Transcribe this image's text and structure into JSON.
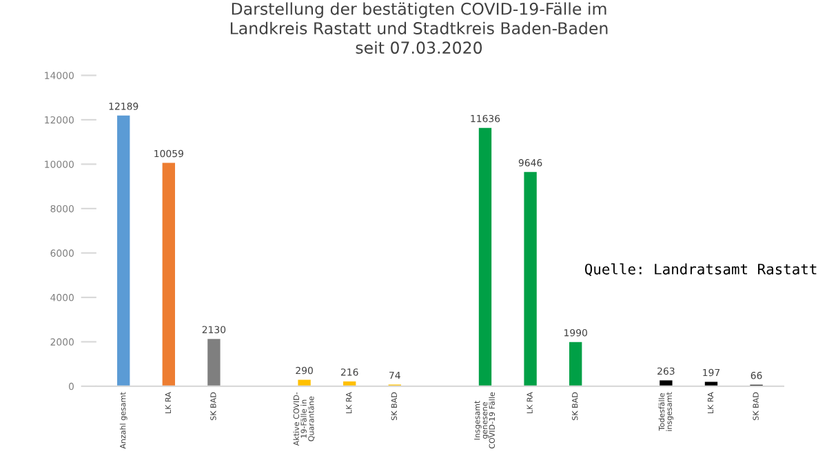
{
  "chart_data": {
    "type": "bar",
    "title": "Darstellung der bestätigten COVID-19-Fälle im\nLandkreis Rastatt und Stadtkreis Baden-Baden\nseit 07.03.2020",
    "categories": [
      "Anzahl gesamt",
      "LK RA",
      "SK BAD",
      null,
      "Aktive COVID-\n19-Fälle in\nQuarantäne",
      "LK RA",
      "SK BAD",
      null,
      "Insgesamt\ngenesene\nCOVID-19 Fälle",
      "LK RA",
      "SK BAD",
      null,
      "Todesfälle\ninsgesamt",
      "LK RA",
      "SK BAD"
    ],
    "values": [
      12189,
      10059,
      2130,
      null,
      290,
      216,
      74,
      null,
      11636,
      9646,
      1990,
      null,
      263,
      197,
      66
    ],
    "colors": [
      "#5b9bd5",
      "#ed7d31",
      "#7f7f7f",
      null,
      "#ffc000",
      "#ffc000",
      "#ffc000",
      null,
      "#00a046",
      "#00a046",
      "#00a046",
      null,
      "#000000",
      "#000000",
      "#000000"
    ],
    "ylim": [
      0,
      14000
    ],
    "yticks": [
      0,
      2000,
      4000,
      6000,
      8000,
      10000,
      12000,
      14000
    ],
    "grid": false,
    "data_labels": true,
    "annotations": [
      "Quelle: Landratsamt Rastatt"
    ]
  }
}
